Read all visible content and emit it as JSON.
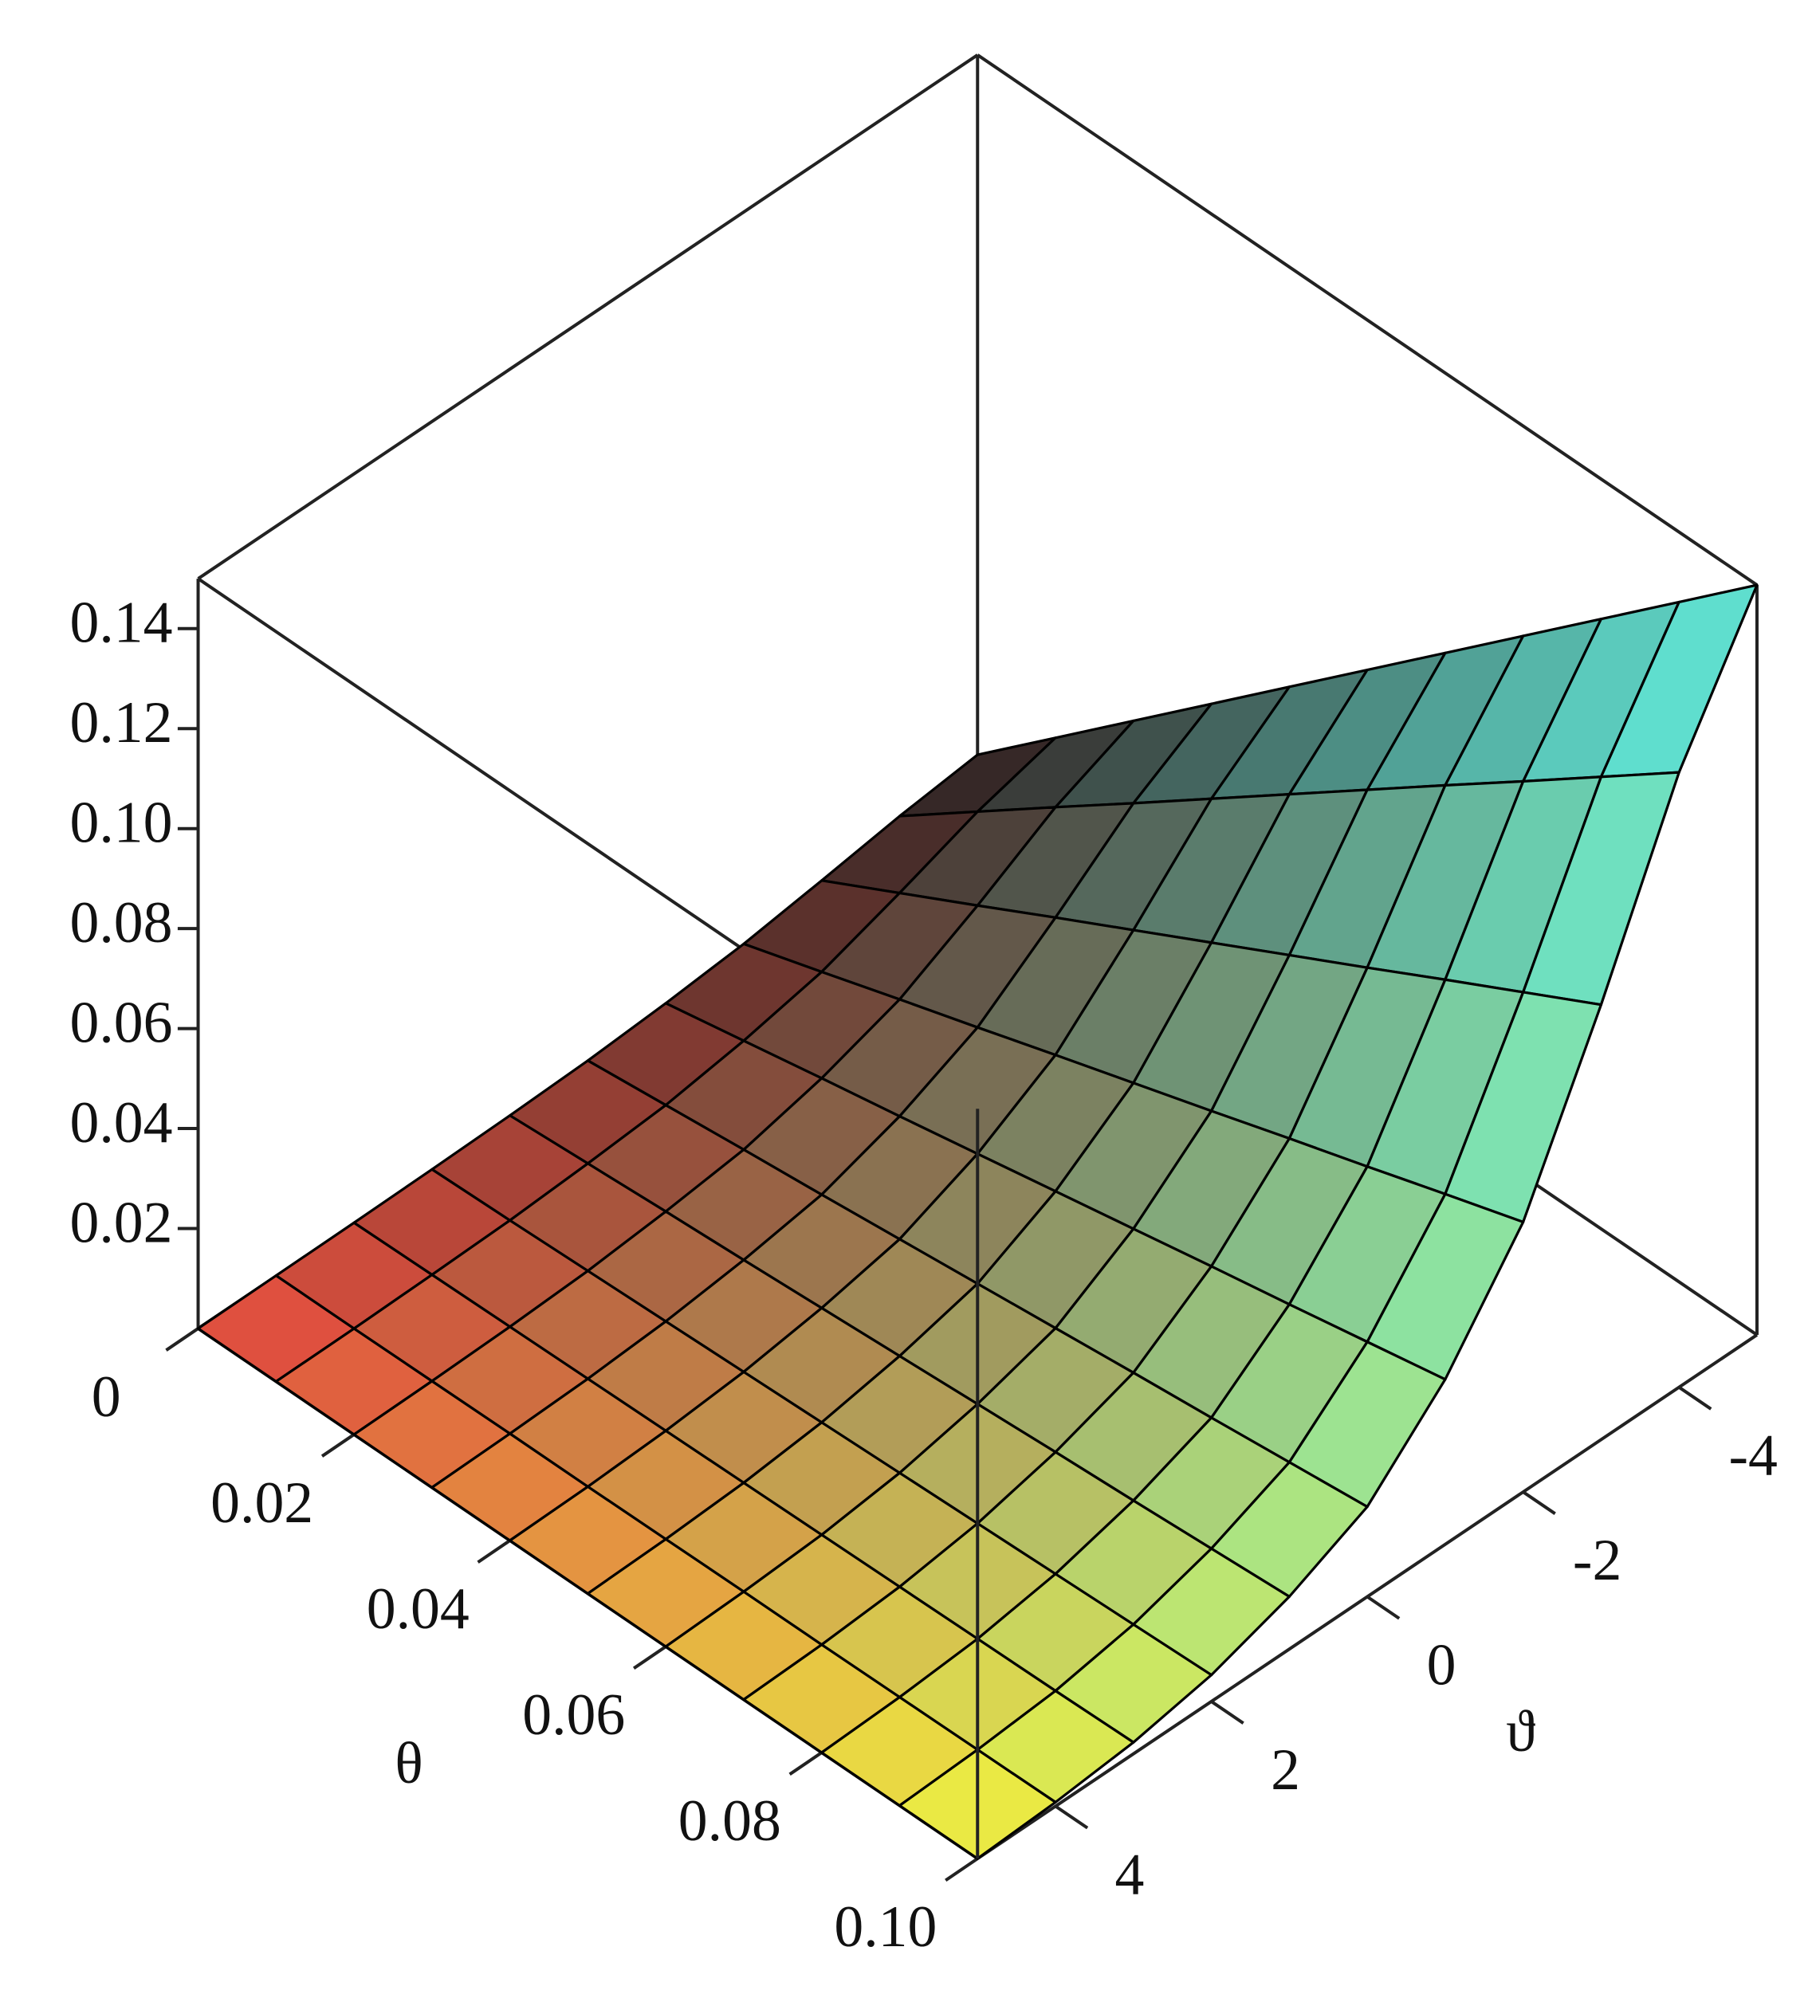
{
  "chart_data": {
    "type": "surface",
    "x_label": "θ",
    "y_label": "ϑ",
    "x": [
      0,
      0.01,
      0.02,
      0.03,
      0.04,
      0.05,
      0.06,
      0.07,
      0.08,
      0.09,
      0.1
    ],
    "y": [
      -5,
      -4,
      -3,
      -2,
      -1,
      0,
      1,
      2,
      3,
      4,
      5
    ],
    "z": [
      [
        0.01,
        0.0082,
        0.0058,
        0.0036,
        0.0022,
        0.0012,
        0.0007,
        0.0004,
        0.0002,
        0.0001,
        0
      ],
      [
        0.024,
        0.0197,
        0.0139,
        0.0086,
        0.0053,
        0.0029,
        0.0017,
        0.0008,
        0.0004,
        0.0001,
        0
      ],
      [
        0.038,
        0.0312,
        0.022,
        0.0137,
        0.0084,
        0.0046,
        0.0027,
        0.0013,
        0.0006,
        0.0002,
        0
      ],
      [
        0.052,
        0.0426,
        0.0302,
        0.0187,
        0.0114,
        0.0062,
        0.0036,
        0.0018,
        0.0008,
        0.0003,
        0
      ],
      [
        0.066,
        0.0541,
        0.0383,
        0.0238,
        0.0145,
        0.0079,
        0.0046,
        0.0023,
        0.001,
        0.0003,
        0
      ],
      [
        0.08,
        0.0656,
        0.0464,
        0.0288,
        0.0176,
        0.0096,
        0.0056,
        0.0028,
        0.0012,
        0.0004,
        0
      ],
      [
        0.094,
        0.0771,
        0.0545,
        0.0338,
        0.0207,
        0.0113,
        0.0066,
        0.0033,
        0.0014,
        0.0005,
        0
      ],
      [
        0.108,
        0.0886,
        0.0626,
        0.0389,
        0.0238,
        0.013,
        0.0076,
        0.0038,
        0.0016,
        0.0005,
        0
      ],
      [
        0.122,
        0.1,
        0.0708,
        0.0439,
        0.0268,
        0.0146,
        0.0085,
        0.0043,
        0.0018,
        0.0006,
        0
      ],
      [
        0.136,
        0.1115,
        0.0789,
        0.049,
        0.0299,
        0.0163,
        0.0095,
        0.0048,
        0.002,
        0.0007,
        0
      ],
      [
        0.15,
        0.123,
        0.087,
        0.054,
        0.033,
        0.018,
        0.0105,
        0.0053,
        0.0023,
        0.0008,
        0
      ]
    ],
    "xlim": [
      0,
      0.1
    ],
    "ylim": [
      -5,
      5
    ],
    "zlim": [
      0,
      0.15
    ],
    "xticks": [
      0,
      0.02,
      0.04,
      0.06,
      0.08,
      {
        "value": 0.1,
        "label": "0.10"
      }
    ],
    "yticks": [
      -4,
      -2,
      0,
      2,
      4
    ],
    "zticks": [
      0.02,
      0.04,
      0.06,
      0.08,
      {
        "value": 0.1,
        "label": "0.10"
      },
      0.12,
      0.14
    ],
    "colors": [
      [
        "#2a1c1c",
        "#e84a40"
      ],
      [
        "#5ae8e0",
        "#f2f23c"
      ]
    ],
    "mesh_color": "#000000",
    "box": true
  }
}
